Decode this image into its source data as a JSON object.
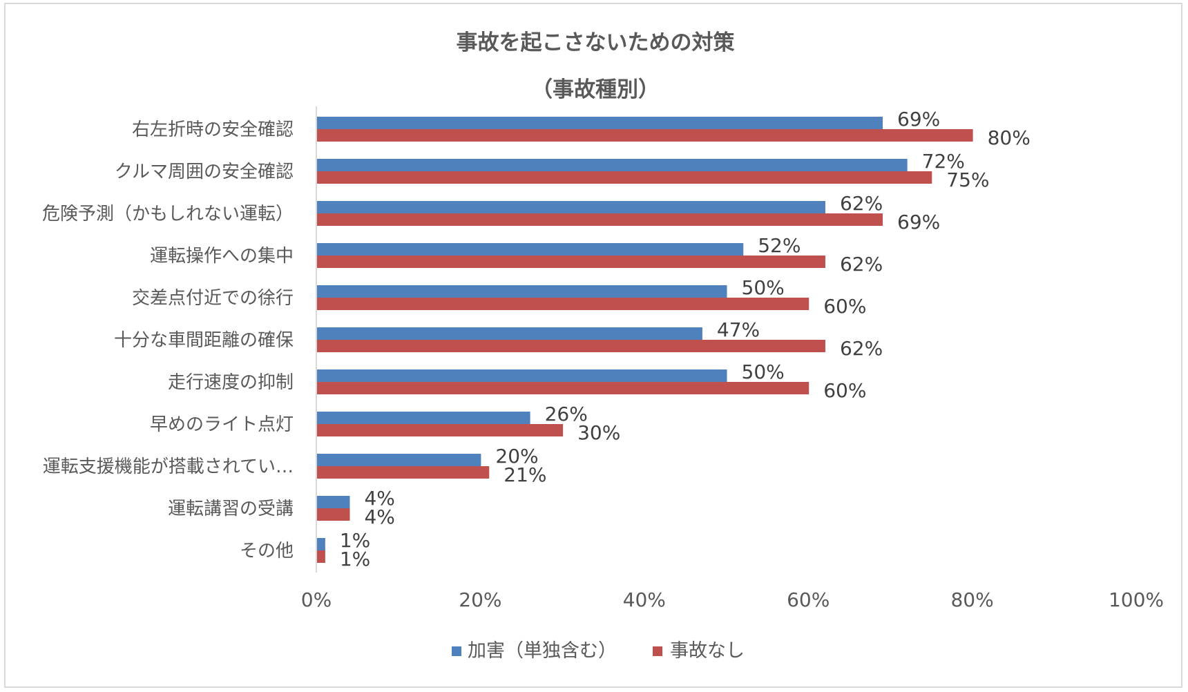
{
  "chart_data": {
    "type": "bar",
    "orientation": "horizontal",
    "title": "事故を起こさないための対策",
    "subtitle": "（事故種別）",
    "categories": [
      "右左折時の安全確認",
      "クルマ周囲の安全確認",
      "危険予測（かもしれない運転）",
      "運転操作への集中",
      "交差点付近での徐行",
      "十分な車間距離の確保",
      "走行速度の抑制",
      "早めのライト点灯",
      "運転支援機能が搭載されてい…",
      "運転講習の受講",
      "その他"
    ],
    "series": [
      {
        "name": "加害（単独含む）",
        "color": "#4f81bd",
        "values": [
          69,
          72,
          62,
          52,
          50,
          47,
          50,
          26,
          20,
          4,
          1
        ],
        "labels": [
          "69%",
          "72%",
          "62%",
          "52%",
          "50%",
          "47%",
          "50%",
          "26%",
          "20%",
          "4%",
          "1%"
        ]
      },
      {
        "name": "事故なし",
        "color": "#c0504d",
        "values": [
          80,
          75,
          69,
          62,
          60,
          62,
          60,
          30,
          21,
          4,
          1
        ],
        "labels": [
          "80%",
          "75%",
          "69%",
          "62%",
          "60%",
          "62%",
          "60%",
          "30%",
          "21%",
          "4%",
          "1%"
        ]
      }
    ],
    "xlim": [
      0,
      100
    ],
    "xticks": [
      0,
      20,
      40,
      60,
      80,
      100
    ],
    "xtick_labels": [
      "0%",
      "20%",
      "40%",
      "60%",
      "80%",
      "100%"
    ],
    "grid": false,
    "legend_position": "bottom"
  }
}
